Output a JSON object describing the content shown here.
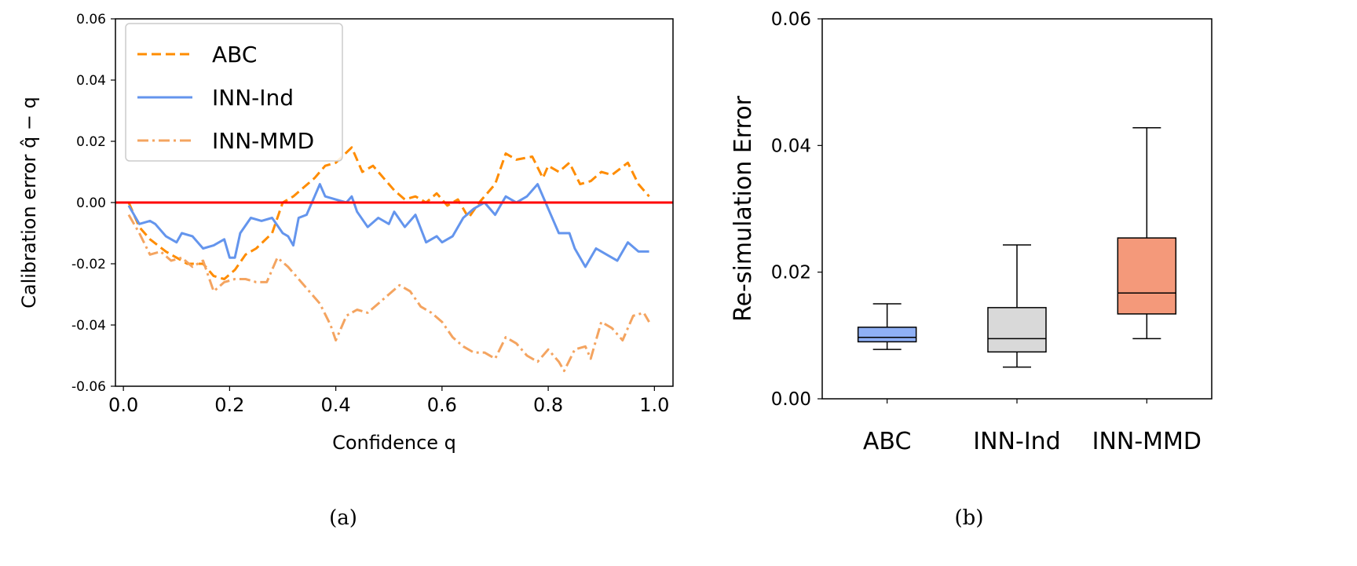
{
  "chart_data": [
    {
      "type": "line",
      "panel_caption": "(a)",
      "xlabel": "Confidence q",
      "ylabel": "Calibration error q̂ − q",
      "xlim": [
        -0.015,
        1.035
      ],
      "ylim": [
        -0.06,
        0.06
      ],
      "xticks": [
        "0.0",
        "0.2",
        "0.4",
        "0.6",
        "0.8",
        "1.0"
      ],
      "xtick_values": [
        0,
        0.2,
        0.4,
        0.6,
        0.8,
        1.0
      ],
      "yticks": [
        "0.06",
        "0.04",
        "0.02",
        "0.00",
        "-0.02",
        "-0.04",
        "-0.06"
      ],
      "ytick_values": [
        0.06,
        0.04,
        0.02,
        0,
        -0.02,
        -0.04,
        -0.06
      ],
      "legend_position": "top-left",
      "reference_line": {
        "y": 0,
        "color": "#ff0000"
      },
      "series": [
        {
          "name": "ABC",
          "color": "#ff8c00",
          "style": "dashed",
          "x": [
            0.01,
            0.03,
            0.05,
            0.08,
            0.1,
            0.12,
            0.15,
            0.17,
            0.19,
            0.21,
            0.23,
            0.25,
            0.28,
            0.3,
            0.32,
            0.34,
            0.36,
            0.38,
            0.4,
            0.43,
            0.45,
            0.47,
            0.49,
            0.51,
            0.53,
            0.55,
            0.57,
            0.59,
            0.61,
            0.63,
            0.65,
            0.67,
            0.7,
            0.72,
            0.74,
            0.77,
            0.79,
            0.8,
            0.82,
            0.84,
            0.86,
            0.88,
            0.9,
            0.92,
            0.95,
            0.97,
            0.99
          ],
          "y": [
            0.0,
            -0.008,
            -0.012,
            -0.016,
            -0.018,
            -0.02,
            -0.02,
            -0.024,
            -0.025,
            -0.022,
            -0.017,
            -0.015,
            -0.01,
            0.0,
            0.002,
            0.005,
            0.008,
            0.012,
            0.013,
            0.018,
            0.01,
            0.012,
            0.008,
            0.004,
            0.001,
            0.002,
            0.0,
            0.003,
            -0.001,
            0.001,
            -0.005,
            0.0,
            0.006,
            0.016,
            0.014,
            0.015,
            0.008,
            0.012,
            0.01,
            0.013,
            0.006,
            0.007,
            0.01,
            0.009,
            0.013,
            0.006,
            0.002
          ]
        },
        {
          "name": "INN-Ind",
          "color": "#6495ed",
          "style": "solid",
          "x": [
            0.01,
            0.03,
            0.05,
            0.06,
            0.08,
            0.1,
            0.11,
            0.13,
            0.15,
            0.17,
            0.19,
            0.2,
            0.21,
            0.22,
            0.24,
            0.26,
            0.28,
            0.3,
            0.31,
            0.32,
            0.33,
            0.345,
            0.36,
            0.37,
            0.38,
            0.42,
            0.43,
            0.44,
            0.46,
            0.48,
            0.5,
            0.51,
            0.53,
            0.55,
            0.57,
            0.59,
            0.6,
            0.62,
            0.64,
            0.66,
            0.68,
            0.7,
            0.72,
            0.74,
            0.76,
            0.78,
            0.8,
            0.82,
            0.84,
            0.85,
            0.87,
            0.89,
            0.91,
            0.93,
            0.95,
            0.97,
            0.99
          ],
          "y": [
            -0.001,
            -0.007,
            -0.006,
            -0.007,
            -0.011,
            -0.013,
            -0.01,
            -0.011,
            -0.015,
            -0.014,
            -0.012,
            -0.018,
            -0.018,
            -0.01,
            -0.005,
            -0.006,
            -0.005,
            -0.01,
            -0.011,
            -0.014,
            -0.005,
            -0.004,
            0.002,
            0.006,
            0.002,
            0.0,
            0.002,
            -0.003,
            -0.008,
            -0.005,
            -0.007,
            -0.003,
            -0.008,
            -0.004,
            -0.013,
            -0.011,
            -0.013,
            -0.011,
            -0.005,
            -0.002,
            0.0,
            -0.004,
            0.002,
            0.0,
            0.002,
            0.006,
            -0.002,
            -0.01,
            -0.01,
            -0.015,
            -0.021,
            -0.015,
            -0.017,
            -0.019,
            -0.013,
            -0.016,
            -0.016
          ]
        },
        {
          "name": "INN-MMD",
          "color": "#f4a460",
          "style": "dashdot",
          "x": [
            0.01,
            0.03,
            0.05,
            0.07,
            0.09,
            0.11,
            0.13,
            0.15,
            0.17,
            0.19,
            0.21,
            0.23,
            0.25,
            0.27,
            0.29,
            0.31,
            0.33,
            0.35,
            0.37,
            0.39,
            0.4,
            0.42,
            0.44,
            0.46,
            0.48,
            0.5,
            0.52,
            0.54,
            0.56,
            0.58,
            0.6,
            0.62,
            0.64,
            0.66,
            0.68,
            0.7,
            0.72,
            0.74,
            0.76,
            0.78,
            0.8,
            0.82,
            0.83,
            0.85,
            0.87,
            0.88,
            0.9,
            0.92,
            0.94,
            0.96,
            0.98,
            0.99
          ],
          "y": [
            -0.004,
            -0.01,
            -0.017,
            -0.016,
            -0.019,
            -0.018,
            -0.021,
            -0.019,
            -0.029,
            -0.026,
            -0.025,
            -0.025,
            -0.026,
            -0.026,
            -0.018,
            -0.021,
            -0.025,
            -0.029,
            -0.033,
            -0.04,
            -0.045,
            -0.037,
            -0.035,
            -0.036,
            -0.033,
            -0.03,
            -0.027,
            -0.029,
            -0.034,
            -0.036,
            -0.039,
            -0.044,
            -0.047,
            -0.049,
            -0.049,
            -0.051,
            -0.044,
            -0.046,
            -0.05,
            -0.052,
            -0.048,
            -0.052,
            -0.055,
            -0.048,
            -0.047,
            -0.051,
            -0.039,
            -0.041,
            -0.045,
            -0.037,
            -0.036,
            -0.039
          ]
        }
      ]
    },
    {
      "type": "box",
      "panel_caption": "(b)",
      "xlabel": "",
      "ylabel": "Re-simulation Error",
      "ylim": [
        0,
        0.06
      ],
      "yticks": [
        "0.06",
        "0.04",
        "0.02",
        "0.00"
      ],
      "ytick_values": [
        0.06,
        0.04,
        0.02,
        0
      ],
      "categories": [
        "ABC",
        "INN-Ind",
        "INN-MMD"
      ],
      "boxes": [
        {
          "name": "ABC",
          "color": "#8fb0f5",
          "whisker_low": 0.0078,
          "q1": 0.009,
          "median": 0.0097,
          "q3": 0.0113,
          "whisker_high": 0.015
        },
        {
          "name": "INN-Ind",
          "color": "#d9d9d9",
          "whisker_low": 0.005,
          "q1": 0.0074,
          "median": 0.0095,
          "q3": 0.0144,
          "whisker_high": 0.0243
        },
        {
          "name": "INN-MMD",
          "color": "#f4997a",
          "whisker_low": 0.0095,
          "q1": 0.0134,
          "median": 0.0167,
          "q3": 0.0254,
          "whisker_high": 0.0428
        }
      ]
    }
  ]
}
